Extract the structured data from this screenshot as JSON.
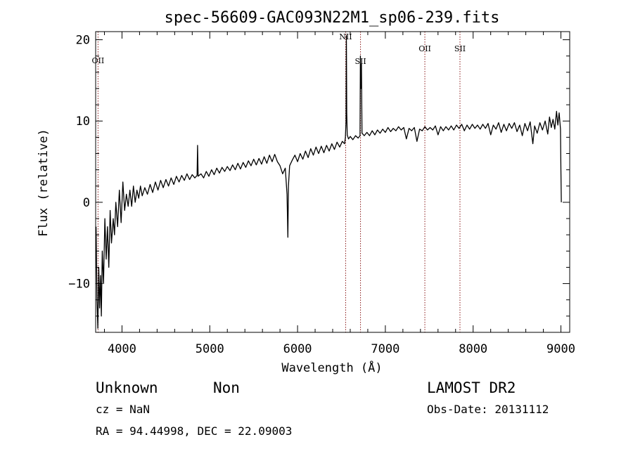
{
  "chart_data": {
    "type": "line",
    "title": "spec-56609-GAC093N22M1_sp06-239.fits",
    "xlabel": "Wavelength (Å)",
    "ylabel": "Flux (relative)",
    "xlim": [
      3700,
      9100
    ],
    "ylim": [
      -16,
      21
    ],
    "x_ticks": [
      {
        "value": 4000,
        "label": "4000"
      },
      {
        "value": 5000,
        "label": "5000"
      },
      {
        "value": 6000,
        "label": "6000"
      },
      {
        "value": 7000,
        "label": "7000"
      },
      {
        "value": 8000,
        "label": "8000"
      },
      {
        "value": 9000,
        "label": "9000"
      }
    ],
    "y_ticks": [
      {
        "value": -10,
        "label": "−10"
      },
      {
        "value": 0,
        "label": "0"
      },
      {
        "value": 10,
        "label": "10"
      },
      {
        "value": 20,
        "label": "20"
      }
    ],
    "grid": false,
    "line_color": "#000000",
    "marker_color": "#8b1a1a",
    "spectral_lines": [
      {
        "name": "OII",
        "wavelength": 3727
      },
      {
        "name": "NII",
        "wavelength": 6548
      },
      {
        "name": "SII",
        "wavelength": 6717
      },
      {
        "name": "OII",
        "wavelength": 7450
      },
      {
        "name": "SII",
        "wavelength": 7850
      }
    ],
    "series": [
      {
        "values": [
          {
            "x": 3705,
            "y": -3
          },
          {
            "x": 3715,
            "y": -12
          },
          {
            "x": 3725,
            "y": -15.5
          },
          {
            "x": 3735,
            "y": -8
          },
          {
            "x": 3745,
            "y": -13
          },
          {
            "x": 3755,
            "y": -9
          },
          {
            "x": 3765,
            "y": -14
          },
          {
            "x": 3775,
            "y": -6
          },
          {
            "x": 3790,
            "y": -10
          },
          {
            "x": 3805,
            "y": -2
          },
          {
            "x": 3820,
            "y": -7
          },
          {
            "x": 3835,
            "y": -3
          },
          {
            "x": 3850,
            "y": -8
          },
          {
            "x": 3865,
            "y": -1
          },
          {
            "x": 3880,
            "y": -5
          },
          {
            "x": 3900,
            "y": -2
          },
          {
            "x": 3915,
            "y": -4
          },
          {
            "x": 3930,
            "y": 0
          },
          {
            "x": 3950,
            "y": -3
          },
          {
            "x": 3970,
            "y": 1.5
          },
          {
            "x": 3990,
            "y": -2.5
          },
          {
            "x": 4010,
            "y": 2.5
          },
          {
            "x": 4030,
            "y": -1
          },
          {
            "x": 4050,
            "y": 1
          },
          {
            "x": 4070,
            "y": -0.5
          },
          {
            "x": 4090,
            "y": 1.5
          },
          {
            "x": 4110,
            "y": -0.5
          },
          {
            "x": 4130,
            "y": 2
          },
          {
            "x": 4150,
            "y": 0
          },
          {
            "x": 4170,
            "y": 1.5
          },
          {
            "x": 4190,
            "y": 0.5
          },
          {
            "x": 4210,
            "y": 2
          },
          {
            "x": 4230,
            "y": 0.8
          },
          {
            "x": 4260,
            "y": 1.8
          },
          {
            "x": 4290,
            "y": 1
          },
          {
            "x": 4320,
            "y": 2.2
          },
          {
            "x": 4350,
            "y": 1.2
          },
          {
            "x": 4380,
            "y": 2.5
          },
          {
            "x": 4410,
            "y": 1.5
          },
          {
            "x": 4440,
            "y": 2.7
          },
          {
            "x": 4470,
            "y": 1.8
          },
          {
            "x": 4500,
            "y": 2.8
          },
          {
            "x": 4530,
            "y": 2
          },
          {
            "x": 4560,
            "y": 3
          },
          {
            "x": 4590,
            "y": 2.2
          },
          {
            "x": 4620,
            "y": 3.2
          },
          {
            "x": 4650,
            "y": 2.5
          },
          {
            "x": 4680,
            "y": 3.3
          },
          {
            "x": 4710,
            "y": 2.7
          },
          {
            "x": 4740,
            "y": 3.5
          },
          {
            "x": 4770,
            "y": 2.8
          },
          {
            "x": 4800,
            "y": 3.4
          },
          {
            "x": 4830,
            "y": 3
          },
          {
            "x": 4855,
            "y": 3.3
          },
          {
            "x": 4861,
            "y": 7
          },
          {
            "x": 4867,
            "y": 3.2
          },
          {
            "x": 4900,
            "y": 3.5
          },
          {
            "x": 4930,
            "y": 3
          },
          {
            "x": 4960,
            "y": 3.8
          },
          {
            "x": 4990,
            "y": 3.2
          },
          {
            "x": 5020,
            "y": 4
          },
          {
            "x": 5050,
            "y": 3.4
          },
          {
            "x": 5080,
            "y": 4.2
          },
          {
            "x": 5110,
            "y": 3.6
          },
          {
            "x": 5140,
            "y": 4.3
          },
          {
            "x": 5170,
            "y": 3.8
          },
          {
            "x": 5200,
            "y": 4.4
          },
          {
            "x": 5230,
            "y": 3.9
          },
          {
            "x": 5260,
            "y": 4.6
          },
          {
            "x": 5290,
            "y": 4
          },
          {
            "x": 5320,
            "y": 4.8
          },
          {
            "x": 5350,
            "y": 4.1
          },
          {
            "x": 5380,
            "y": 4.9
          },
          {
            "x": 5410,
            "y": 4.3
          },
          {
            "x": 5440,
            "y": 5.1
          },
          {
            "x": 5470,
            "y": 4.5
          },
          {
            "x": 5500,
            "y": 5.3
          },
          {
            "x": 5530,
            "y": 4.6
          },
          {
            "x": 5560,
            "y": 5.4
          },
          {
            "x": 5590,
            "y": 4.7
          },
          {
            "x": 5620,
            "y": 5.6
          },
          {
            "x": 5650,
            "y": 4.8
          },
          {
            "x": 5680,
            "y": 5.8
          },
          {
            "x": 5710,
            "y": 5
          },
          {
            "x": 5740,
            "y": 5.9
          },
          {
            "x": 5770,
            "y": 5
          },
          {
            "x": 5800,
            "y": 4.5
          },
          {
            "x": 5830,
            "y": 3.5
          },
          {
            "x": 5860,
            "y": 4.2
          },
          {
            "x": 5880,
            "y": 1
          },
          {
            "x": 5890,
            "y": -4.3
          },
          {
            "x": 5896,
            "y": 2
          },
          {
            "x": 5910,
            "y": 4.5
          },
          {
            "x": 5940,
            "y": 5.2
          },
          {
            "x": 5970,
            "y": 5.8
          },
          {
            "x": 6000,
            "y": 5
          },
          {
            "x": 6030,
            "y": 6
          },
          {
            "x": 6060,
            "y": 5.3
          },
          {
            "x": 6090,
            "y": 6.3
          },
          {
            "x": 6120,
            "y": 5.5
          },
          {
            "x": 6150,
            "y": 6.6
          },
          {
            "x": 6180,
            "y": 5.8
          },
          {
            "x": 6210,
            "y": 6.8
          },
          {
            "x": 6240,
            "y": 6
          },
          {
            "x": 6270,
            "y": 6.9
          },
          {
            "x": 6300,
            "y": 6.1
          },
          {
            "x": 6330,
            "y": 7
          },
          {
            "x": 6360,
            "y": 6.3
          },
          {
            "x": 6390,
            "y": 7.2
          },
          {
            "x": 6420,
            "y": 6.5
          },
          {
            "x": 6450,
            "y": 7.4
          },
          {
            "x": 6480,
            "y": 6.8
          },
          {
            "x": 6510,
            "y": 7.5
          },
          {
            "x": 6535,
            "y": 7.2
          },
          {
            "x": 6545,
            "y": 8
          },
          {
            "x": 6552,
            "y": 10
          },
          {
            "x": 6556,
            "y": 20.5
          },
          {
            "x": 6560,
            "y": 11
          },
          {
            "x": 6566,
            "y": 8.3
          },
          {
            "x": 6580,
            "y": 7.8
          },
          {
            "x": 6600,
            "y": 8.1
          },
          {
            "x": 6630,
            "y": 7.7
          },
          {
            "x": 6660,
            "y": 8.2
          },
          {
            "x": 6690,
            "y": 7.9
          },
          {
            "x": 6712,
            "y": 8.2
          },
          {
            "x": 6716,
            "y": 18
          },
          {
            "x": 6722,
            "y": 14
          },
          {
            "x": 6728,
            "y": 17
          },
          {
            "x": 6734,
            "y": 8.5
          },
          {
            "x": 6760,
            "y": 8.2
          },
          {
            "x": 6790,
            "y": 8.6
          },
          {
            "x": 6820,
            "y": 8.2
          },
          {
            "x": 6850,
            "y": 8.8
          },
          {
            "x": 6880,
            "y": 8.3
          },
          {
            "x": 6910,
            "y": 8.9
          },
          {
            "x": 6940,
            "y": 8.5
          },
          {
            "x": 6970,
            "y": 9
          },
          {
            "x": 7000,
            "y": 8.6
          },
          {
            "x": 7030,
            "y": 9.2
          },
          {
            "x": 7060,
            "y": 8.7
          },
          {
            "x": 7090,
            "y": 9.1
          },
          {
            "x": 7120,
            "y": 8.8
          },
          {
            "x": 7150,
            "y": 9.3
          },
          {
            "x": 7180,
            "y": 8.9
          },
          {
            "x": 7210,
            "y": 9.2
          },
          {
            "x": 7240,
            "y": 7.8
          },
          {
            "x": 7270,
            "y": 9.1
          },
          {
            "x": 7300,
            "y": 8.8
          },
          {
            "x": 7330,
            "y": 9.2
          },
          {
            "x": 7360,
            "y": 7.5
          },
          {
            "x": 7390,
            "y": 9
          },
          {
            "x": 7420,
            "y": 8.8
          },
          {
            "x": 7450,
            "y": 9.3
          },
          {
            "x": 7480,
            "y": 8.9
          },
          {
            "x": 7510,
            "y": 9.2
          },
          {
            "x": 7540,
            "y": 8.9
          },
          {
            "x": 7570,
            "y": 9.4
          },
          {
            "x": 7600,
            "y": 8.3
          },
          {
            "x": 7630,
            "y": 9.3
          },
          {
            "x": 7660,
            "y": 8.8
          },
          {
            "x": 7690,
            "y": 9.3
          },
          {
            "x": 7720,
            "y": 8.9
          },
          {
            "x": 7750,
            "y": 9.4
          },
          {
            "x": 7780,
            "y": 8.9
          },
          {
            "x": 7810,
            "y": 9.5
          },
          {
            "x": 7840,
            "y": 9.1
          },
          {
            "x": 7870,
            "y": 9.6
          },
          {
            "x": 7900,
            "y": 8.8
          },
          {
            "x": 7930,
            "y": 9.5
          },
          {
            "x": 7960,
            "y": 9
          },
          {
            "x": 7990,
            "y": 9.6
          },
          {
            "x": 8020,
            "y": 9.1
          },
          {
            "x": 8050,
            "y": 9.5
          },
          {
            "x": 8080,
            "y": 9
          },
          {
            "x": 8110,
            "y": 9.6
          },
          {
            "x": 8140,
            "y": 9.1
          },
          {
            "x": 8170,
            "y": 9.7
          },
          {
            "x": 8200,
            "y": 8.3
          },
          {
            "x": 8230,
            "y": 9.5
          },
          {
            "x": 8260,
            "y": 9
          },
          {
            "x": 8290,
            "y": 9.8
          },
          {
            "x": 8320,
            "y": 8.6
          },
          {
            "x": 8350,
            "y": 9.6
          },
          {
            "x": 8380,
            "y": 8.8
          },
          {
            "x": 8410,
            "y": 9.7
          },
          {
            "x": 8440,
            "y": 9.1
          },
          {
            "x": 8470,
            "y": 9.8
          },
          {
            "x": 8500,
            "y": 8.7
          },
          {
            "x": 8530,
            "y": 9.5
          },
          {
            "x": 8560,
            "y": 8.2
          },
          {
            "x": 8590,
            "y": 9.7
          },
          {
            "x": 8620,
            "y": 8.8
          },
          {
            "x": 8650,
            "y": 9.9
          },
          {
            "x": 8680,
            "y": 7.2
          },
          {
            "x": 8700,
            "y": 9.4
          },
          {
            "x": 8730,
            "y": 8.5
          },
          {
            "x": 8760,
            "y": 9.8
          },
          {
            "x": 8790,
            "y": 8.9
          },
          {
            "x": 8820,
            "y": 10
          },
          {
            "x": 8850,
            "y": 8.4
          },
          {
            "x": 8870,
            "y": 10.5
          },
          {
            "x": 8890,
            "y": 9.2
          },
          {
            "x": 8910,
            "y": 10.2
          },
          {
            "x": 8930,
            "y": 9
          },
          {
            "x": 8950,
            "y": 11.2
          },
          {
            "x": 8965,
            "y": 9.5
          },
          {
            "x": 8980,
            "y": 11
          },
          {
            "x": 8995,
            "y": 9
          },
          {
            "x": 9000,
            "y": 4
          },
          {
            "x": 9005,
            "y": 0
          }
        ]
      }
    ]
  },
  "info": {
    "object_class": "Unknown",
    "subclass": "Non",
    "cz": "cz = NaN",
    "coords": "RA =  94.44998, DEC =  22.09003",
    "survey": "LAMOST DR2",
    "obs_date": "Obs-Date: 20131112"
  }
}
